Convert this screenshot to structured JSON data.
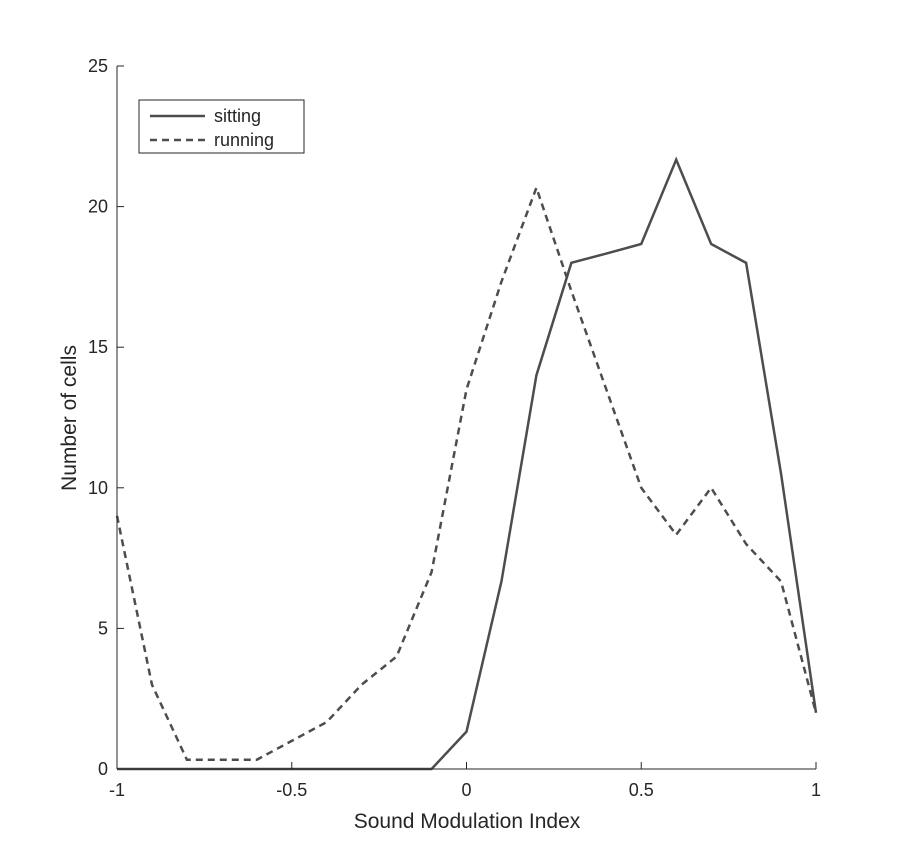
{
  "chart_data": {
    "type": "line",
    "xlabel": "Sound Modulation Index",
    "ylabel": "Number of cells",
    "xlim": [
      -1,
      1
    ],
    "ylim": [
      0,
      25
    ],
    "xticks": [
      -1,
      -0.5,
      0,
      0.5,
      1
    ],
    "xtick_labels": [
      "-1",
      "-0.5",
      "0",
      "0.5",
      "1"
    ],
    "yticks": [
      0,
      5,
      10,
      15,
      20,
      25
    ],
    "ytick_labels": [
      "0",
      "5",
      "10",
      "15",
      "20",
      "25"
    ],
    "grid": false,
    "legend_position": "top-left",
    "x": [
      -1,
      -0.9,
      -0.8,
      -0.7,
      -0.6,
      -0.5,
      -0.4,
      -0.3,
      -0.2,
      -0.1,
      0,
      0.1,
      0.2,
      0.3,
      0.4,
      0.5,
      0.6,
      0.7,
      0.8,
      0.9,
      1
    ],
    "series": [
      {
        "name": "sitting",
        "style": "solid",
        "color": "#4d4d4d",
        "values": [
          0,
          0,
          0,
          0,
          0,
          0,
          0,
          0,
          0,
          0,
          1.33,
          6.67,
          14,
          18,
          18.33,
          18.67,
          21.67,
          18.67,
          18,
          10.5,
          2
        ]
      },
      {
        "name": "running",
        "style": "dashed",
        "color": "#4d4d4d",
        "values": [
          9,
          3,
          0.33,
          0.33,
          0.33,
          1,
          1.67,
          3,
          4,
          7,
          13.5,
          17.33,
          20.67,
          17,
          13.5,
          10,
          8.33,
          10,
          8,
          6.67,
          2
        ]
      }
    ]
  }
}
